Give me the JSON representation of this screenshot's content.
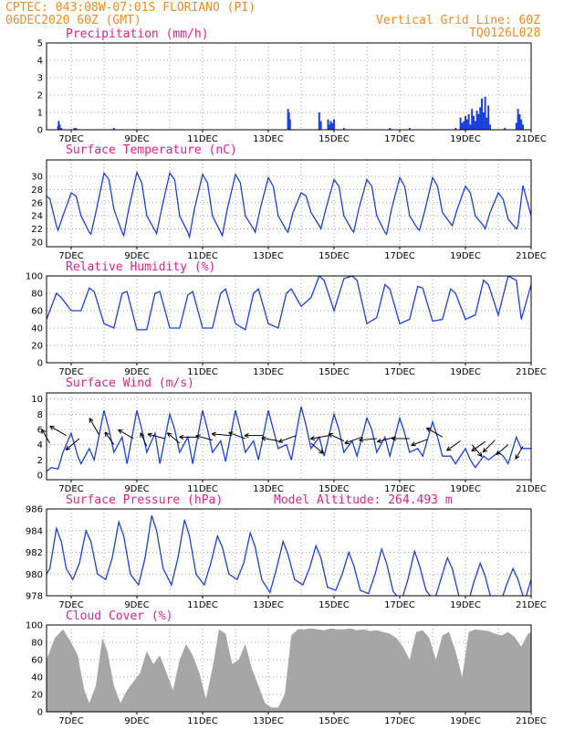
{
  "header": {
    "line1": "CPTEC:   043:08W-07:01S   FLORIANO (PI)",
    "line2": "06DEC2020 60Z (GMT)",
    "grid_note": "Vertical Grid Line: 60Z",
    "code": "TQ0126L028"
  },
  "x_labels": [
    "7DEC",
    "9DEC",
    "11DEC",
    "13DEC",
    "15DEC",
    "17DEC",
    "19DEC",
    "21DEC"
  ],
  "chart_data": [
    {
      "id": "precip",
      "type": "bar",
      "title": "Precipitation (mm/h)",
      "ylim": [
        0,
        5
      ],
      "yticks": [
        0,
        1,
        2,
        3,
        4,
        5
      ],
      "xlim": [
        6.25,
        21.0
      ],
      "x": [
        6.6,
        6.62,
        6.65,
        6.7,
        7.1,
        7.15,
        8.3,
        13.6,
        13.63,
        13.66,
        14.55,
        14.6,
        14.82,
        14.85,
        14.9,
        14.95,
        15.0,
        15.3,
        16.7,
        17.3,
        18.7,
        18.85,
        18.9,
        18.95,
        19.0,
        19.05,
        19.1,
        19.15,
        19.2,
        19.25,
        19.3,
        19.35,
        19.4,
        19.45,
        19.5,
        19.55,
        19.6,
        19.65,
        19.7,
        19.75,
        20.2,
        20.55,
        20.6,
        20.65,
        20.7,
        20.75
      ],
      "values": [
        0.2,
        0.5,
        0.3,
        0.1,
        0.1,
        0.1,
        0.1,
        1.2,
        1.0,
        0.6,
        1.0,
        0.5,
        0.6,
        0.3,
        0.5,
        0.4,
        0.6,
        0.1,
        0.1,
        0.1,
        0.1,
        0.7,
        0.4,
        0.5,
        0.8,
        0.6,
        0.9,
        0.3,
        1.2,
        0.8,
        0.5,
        1.1,
        0.9,
        1.3,
        1.8,
        1.0,
        1.9,
        0.7,
        1.4,
        0.3,
        0.1,
        0.4,
        1.2,
        0.9,
        0.6,
        0.3
      ]
    },
    {
      "id": "temp",
      "type": "line",
      "title": "Surface Temperature (nC)",
      "ylim": [
        19.3,
        32.5
      ],
      "yticks": [
        20,
        22,
        24,
        26,
        28,
        30
      ],
      "xlim": [
        6.25,
        21.0
      ],
      "x": [
        6.25,
        6.35,
        6.55,
        6.6,
        6.75,
        7.0,
        7.15,
        7.3,
        7.55,
        7.6,
        7.75,
        8.0,
        8.15,
        8.3,
        8.55,
        8.6,
        8.75,
        9.0,
        9.15,
        9.3,
        9.55,
        9.6,
        9.75,
        10.0,
        10.15,
        10.3,
        10.55,
        10.6,
        10.75,
        11.0,
        11.15,
        11.3,
        11.55,
        11.6,
        11.75,
        12.0,
        12.15,
        12.3,
        12.55,
        12.6,
        12.75,
        13.0,
        13.15,
        13.3,
        13.55,
        13.6,
        13.75,
        14.0,
        14.15,
        14.3,
        14.55,
        14.6,
        14.75,
        15.0,
        15.15,
        15.3,
        15.55,
        15.6,
        15.75,
        16.0,
        16.15,
        16.3,
        16.55,
        16.6,
        16.75,
        17.0,
        17.15,
        17.3,
        17.55,
        17.6,
        17.75,
        18.0,
        18.15,
        18.3,
        18.55,
        18.6,
        18.75,
        19.0,
        19.15,
        19.3,
        19.55,
        19.6,
        19.75,
        20.0,
        20.15,
        20.3,
        20.55,
        20.6,
        20.75,
        21.0
      ],
      "values": [
        27,
        26.6,
        22.5,
        21.8,
        24.0,
        27.5,
        27.0,
        24.0,
        21.5,
        21.2,
        24.5,
        30.5,
        29.5,
        25.0,
        21.5,
        21.0,
        25.0,
        30.6,
        29.0,
        24.0,
        21.8,
        21.3,
        25.0,
        30.5,
        29.5,
        24.0,
        21.5,
        20.8,
        25.0,
        30.3,
        29.0,
        24.0,
        21.5,
        21.0,
        25.0,
        30.3,
        29.0,
        24.0,
        22.0,
        21.5,
        25.0,
        29.8,
        28.5,
        24.0,
        21.8,
        21.5,
        24.5,
        27.5,
        27.0,
        24.5,
        22.5,
        22.0,
        25.0,
        29.5,
        28.5,
        24.0,
        21.8,
        21.5,
        25.0,
        29.5,
        28.5,
        24.0,
        21.5,
        21.2,
        25.0,
        29.8,
        28.5,
        24.0,
        22.0,
        21.8,
        24.5,
        29.8,
        28.5,
        24.5,
        22.8,
        22.5,
        25.0,
        28.5,
        27.5,
        24.0,
        22.5,
        22.0,
        24.5,
        27.5,
        26.5,
        23.5,
        22.0,
        22.5,
        28.6,
        24.0
      ]
    },
    {
      "id": "rh",
      "type": "line",
      "title": "Relative Humidity (%)",
      "ylim": [
        0,
        100
      ],
      "yticks": [
        0,
        20,
        40,
        60,
        80,
        100
      ],
      "xlim": [
        6.25,
        21.0
      ],
      "x": [
        6.25,
        6.55,
        6.7,
        7.0,
        7.3,
        7.55,
        7.7,
        8.0,
        8.3,
        8.55,
        8.7,
        9.0,
        9.3,
        9.55,
        9.7,
        10.0,
        10.3,
        10.55,
        10.7,
        11.0,
        11.3,
        11.55,
        11.7,
        12.0,
        12.3,
        12.55,
        12.7,
        13.0,
        13.3,
        13.55,
        13.7,
        14.0,
        14.3,
        14.55,
        14.7,
        15.0,
        15.3,
        15.55,
        15.7,
        16.0,
        16.3,
        16.55,
        16.7,
        17.0,
        17.3,
        17.55,
        17.7,
        18.0,
        18.3,
        18.55,
        18.7,
        19.0,
        19.3,
        19.55,
        19.7,
        20.0,
        20.3,
        20.55,
        20.7,
        21.0
      ],
      "values": [
        50,
        80,
        75,
        60,
        60,
        86,
        82,
        45,
        40,
        80,
        82,
        38,
        38,
        80,
        82,
        40,
        40,
        78,
        82,
        40,
        40,
        80,
        85,
        45,
        38,
        80,
        85,
        45,
        40,
        80,
        85,
        65,
        75,
        100,
        95,
        60,
        97,
        100,
        95,
        45,
        52,
        90,
        85,
        45,
        50,
        88,
        86,
        48,
        50,
        85,
        80,
        50,
        55,
        95,
        90,
        55,
        100,
        95,
        50,
        90
      ]
    },
    {
      "id": "wind",
      "type": "line",
      "title": "Surface Wind (m/s)",
      "ylim": [
        -0.6,
        10.8
      ],
      "yticks": [
        0,
        2,
        4,
        6,
        8,
        10
      ],
      "xlim": [
        6.25,
        21.0
      ],
      "x": [
        6.25,
        6.4,
        6.6,
        6.75,
        7.0,
        7.2,
        7.3,
        7.55,
        7.7,
        8.0,
        8.15,
        8.3,
        8.55,
        8.7,
        9.0,
        9.15,
        9.3,
        9.55,
        9.7,
        10.0,
        10.15,
        10.3,
        10.55,
        10.7,
        11.0,
        11.15,
        11.3,
        11.55,
        11.7,
        12.0,
        12.15,
        12.3,
        12.55,
        12.7,
        13.0,
        13.15,
        13.3,
        13.55,
        13.7,
        14.0,
        14.15,
        14.3,
        14.55,
        14.7,
        15.0,
        15.15,
        15.3,
        15.55,
        15.7,
        16.0,
        16.15,
        16.3,
        16.55,
        16.7,
        17.0,
        17.15,
        17.3,
        17.55,
        17.7,
        18.0,
        18.15,
        18.3,
        18.55,
        18.7,
        19.0,
        19.15,
        19.3,
        19.55,
        19.7,
        20.0,
        20.15,
        20.3,
        20.55,
        20.7,
        21.0
      ],
      "values": [
        0.5,
        1.0,
        0.8,
        3.0,
        5.5,
        2.5,
        1.5,
        3.5,
        2.0,
        8.5,
        6.0,
        3.0,
        5.0,
        1.5,
        8.5,
        6.0,
        3.0,
        5.5,
        1.5,
        8.0,
        6.0,
        3.0,
        5.0,
        1.5,
        8.5,
        6.0,
        3.0,
        4.5,
        1.8,
        8.5,
        6.0,
        3.0,
        4.5,
        2.0,
        8.5,
        6.0,
        3.5,
        4.0,
        2.0,
        9.0,
        6.5,
        3.5,
        5.0,
        2.5,
        8.0,
        6.0,
        3.0,
        4.5,
        2.5,
        7.5,
        6.0,
        3.0,
        5.0,
        2.5,
        7.5,
        5.5,
        3.0,
        3.5,
        2.5,
        7.0,
        5.0,
        2.5,
        2.5,
        1.5,
        3.5,
        2.0,
        1.0,
        2.5,
        2.0,
        3.0,
        2.5,
        1.5,
        5.0,
        3.5,
        3.5
      ],
      "arrow_x": [
        6.35,
        6.85,
        7.25,
        7.85,
        8.3,
        8.9,
        9.3,
        9.85,
        10.3,
        10.85,
        11.3,
        11.85,
        12.3,
        12.85,
        13.3,
        13.85,
        14.3,
        14.85,
        15.3,
        15.85,
        16.3,
        16.85,
        17.3,
        17.85,
        18.3,
        18.85,
        19.2,
        19.6,
        19.9,
        20.3,
        20.75
      ],
      "arrow_y": [
        4.2,
        5.2,
        4.8,
        5.3,
        4.0,
        4.8,
        3.8,
        4.8,
        4.2,
        5.0,
        4.6,
        5.2,
        4.8,
        5.2,
        4.5,
        5.2,
        4.2,
        5.2,
        4.5,
        5.0,
        4.8,
        5.0,
        4.8,
        4.7,
        5.0,
        4.5,
        4.0,
        4.4,
        4.6,
        4.0,
        3.8
      ],
      "arrow_dir_deg": [
        120,
        150,
        220,
        120,
        125,
        150,
        115,
        165,
        140,
        180,
        165,
        175,
        160,
        180,
        170,
        200,
        320,
        190,
        155,
        200,
        185,
        195,
        180,
        200,
        150,
        215,
        310,
        215,
        225,
        220,
        240
      ],
      "arrow_speed": [
        4.2,
        5.2,
        4.8,
        5.3,
        4.0,
        4.8,
        3.8,
        4.8,
        4.2,
        5.0,
        4.6,
        5.2,
        4.8,
        5.2,
        4.5,
        5.2,
        4.2,
        5.2,
        4.5,
        5.0,
        4.8,
        5.0,
        4.8,
        4.7,
        5.0,
        4.5,
        4.0,
        4.4,
        4.6,
        4.0,
        3.8
      ]
    },
    {
      "id": "pres",
      "type": "line",
      "title": "Surface Pressure (hPa)",
      "model_altitude": "Model Altitude: 264.493 m",
      "ylim": [
        978,
        986
      ],
      "yticks": [
        978,
        980,
        982,
        984,
        986
      ],
      "xlim": [
        6.25,
        21.0
      ],
      "x": [
        6.25,
        6.35,
        6.55,
        6.7,
        6.85,
        7.05,
        7.25,
        7.45,
        7.6,
        7.8,
        8.05,
        8.25,
        8.45,
        8.6,
        8.8,
        9.05,
        9.25,
        9.45,
        9.6,
        9.8,
        10.05,
        10.25,
        10.45,
        10.6,
        10.8,
        11.05,
        11.25,
        11.45,
        11.6,
        11.8,
        12.05,
        12.25,
        12.45,
        12.6,
        12.8,
        13.05,
        13.25,
        13.45,
        13.6,
        13.8,
        14.05,
        14.25,
        14.45,
        14.6,
        14.8,
        15.05,
        15.25,
        15.45,
        15.6,
        15.8,
        16.05,
        16.25,
        16.45,
        16.6,
        16.8,
        17.05,
        17.25,
        17.45,
        17.6,
        17.8,
        18.05,
        18.25,
        18.45,
        18.6,
        18.8,
        19.05,
        19.25,
        19.45,
        19.6,
        19.8,
        20.05,
        20.25,
        20.45,
        20.6,
        20.8,
        21.0
      ],
      "values": [
        980.0,
        980.5,
        984.2,
        983.0,
        980.5,
        979.5,
        981.0,
        984.0,
        983.0,
        980.0,
        979.5,
        981.5,
        984.8,
        983.5,
        980.0,
        979.0,
        981.5,
        985.4,
        984.0,
        980.5,
        979.0,
        981.5,
        985.0,
        983.5,
        980.0,
        979.0,
        981.0,
        983.5,
        982.5,
        980.0,
        979.5,
        981.0,
        983.8,
        982.5,
        979.5,
        978.3,
        980.5,
        983.0,
        981.8,
        979.5,
        979.0,
        980.5,
        982.6,
        981.5,
        978.8,
        978.5,
        980.0,
        982.0,
        980.8,
        978.5,
        978.2,
        980.0,
        982.3,
        981.0,
        978.4,
        977.5,
        979.5,
        982.1,
        980.8,
        978.5,
        977.5,
        979.5,
        981.5,
        980.5,
        978.0,
        977.0,
        979.2,
        981.0,
        979.8,
        977.5,
        977.2,
        979.0,
        980.5,
        979.5,
        977.5,
        979.5
      ]
    },
    {
      "id": "cloud",
      "type": "area",
      "title": "Cloud Cover (%)",
      "ylim": [
        0,
        100
      ],
      "yticks": [
        0,
        20,
        40,
        60,
        80,
        100
      ],
      "xlim": [
        6.25,
        21.0
      ],
      "x": [
        6.25,
        6.5,
        6.75,
        7.0,
        7.2,
        7.4,
        7.55,
        7.75,
        7.95,
        8.1,
        8.3,
        8.5,
        8.7,
        8.9,
        9.1,
        9.3,
        9.5,
        9.7,
        9.9,
        10.1,
        10.3,
        10.5,
        10.7,
        10.9,
        11.1,
        11.3,
        11.5,
        11.7,
        11.9,
        12.1,
        12.3,
        12.5,
        12.7,
        12.9,
        13.1,
        13.3,
        13.5,
        13.7,
        13.9,
        14.1,
        14.3,
        14.5,
        14.7,
        14.9,
        15.1,
        15.3,
        15.5,
        15.7,
        15.9,
        16.1,
        16.3,
        16.5,
        16.7,
        16.9,
        17.1,
        17.3,
        17.5,
        17.7,
        17.9,
        18.1,
        18.3,
        18.5,
        18.7,
        18.9,
        19.1,
        19.3,
        19.5,
        19.7,
        19.9,
        20.1,
        20.3,
        20.5,
        20.7,
        20.9,
        21.0
      ],
      "values": [
        60,
        85,
        95,
        80,
        65,
        25,
        10,
        30,
        85,
        70,
        30,
        10,
        25,
        35,
        45,
        70,
        55,
        65,
        45,
        25,
        60,
        78,
        65,
        45,
        15,
        50,
        95,
        90,
        55,
        60,
        78,
        50,
        30,
        10,
        5,
        5,
        20,
        88,
        95,
        95,
        96,
        95,
        94,
        96,
        95,
        95,
        96,
        94,
        95,
        93,
        94,
        92,
        90,
        85,
        75,
        60,
        92,
        94,
        85,
        60,
        88,
        92,
        70,
        40,
        92,
        95,
        94,
        93,
        90,
        88,
        92,
        86,
        75,
        90,
        92
      ]
    }
  ]
}
